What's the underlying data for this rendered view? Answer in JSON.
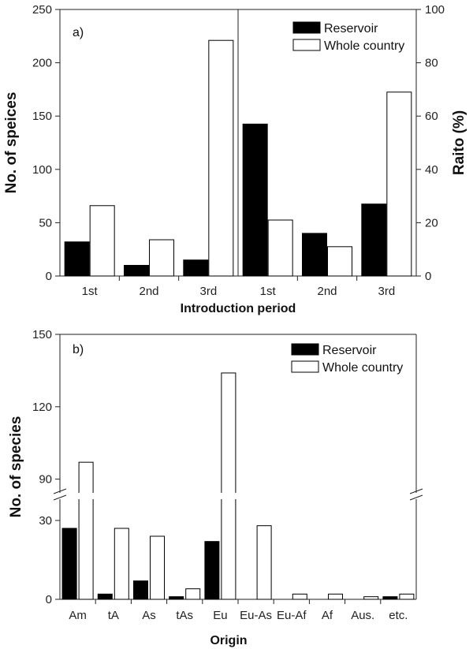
{
  "colors": {
    "reservoir": "#000000",
    "whole_country": "#ffffff",
    "axis": "#222222"
  },
  "chart_data": [
    {
      "type": "bar",
      "panel_label": "a)",
      "xlabel": "Introduction period",
      "ylabel": "No. of speices",
      "y2label": "Raito (%)",
      "legend": {
        "position": "top-right",
        "entries": [
          "Reservoir",
          "Whole country"
        ]
      },
      "groups": [
        {
          "name": "count",
          "axis": "left",
          "ylim": [
            0,
            250
          ],
          "yticks": [
            "0",
            "50",
            "100",
            "150",
            "200",
            "250"
          ],
          "categories": [
            "1st",
            "2nd",
            "3rd"
          ],
          "series": [
            {
              "name": "Reservoir",
              "values": [
                32,
                10,
                15
              ]
            },
            {
              "name": "Whole country",
              "values": [
                66,
                34,
                221
              ]
            }
          ]
        },
        {
          "name": "ratio",
          "axis": "right",
          "ylim": [
            0,
            100
          ],
          "yticks": [
            "0",
            "20",
            "40",
            "60",
            "80",
            "100"
          ],
          "categories": [
            "1st",
            "2nd",
            "3rd"
          ],
          "series": [
            {
              "name": "Reservoir",
              "values": [
                57,
                16,
                27
              ]
            },
            {
              "name": "Whole country",
              "values": [
                21,
                11,
                69
              ]
            }
          ]
        }
      ]
    },
    {
      "type": "bar",
      "panel_label": "b)",
      "xlabel": "Origin",
      "ylabel": "No. of species",
      "legend": {
        "position": "top-right",
        "entries": [
          "Reservoir",
          "Whole country"
        ]
      },
      "y_axis_break": [
        37,
        83
      ],
      "ylim": [
        0,
        150
      ],
      "yticks": [
        "0",
        "30",
        "90",
        "120",
        "150"
      ],
      "categories": [
        "Am",
        "tA",
        "As",
        "tAs",
        "Eu",
        "Eu-As",
        "Eu-Af",
        "Af",
        "Aus.",
        "etc."
      ],
      "series": [
        {
          "name": "Reservoir",
          "values": [
            27,
            2,
            7,
            1,
            22,
            0,
            0,
            0,
            0,
            1
          ]
        },
        {
          "name": "Whole country",
          "values": [
            97,
            27,
            24,
            4,
            134,
            28,
            2,
            2,
            1,
            2
          ]
        }
      ]
    }
  ]
}
